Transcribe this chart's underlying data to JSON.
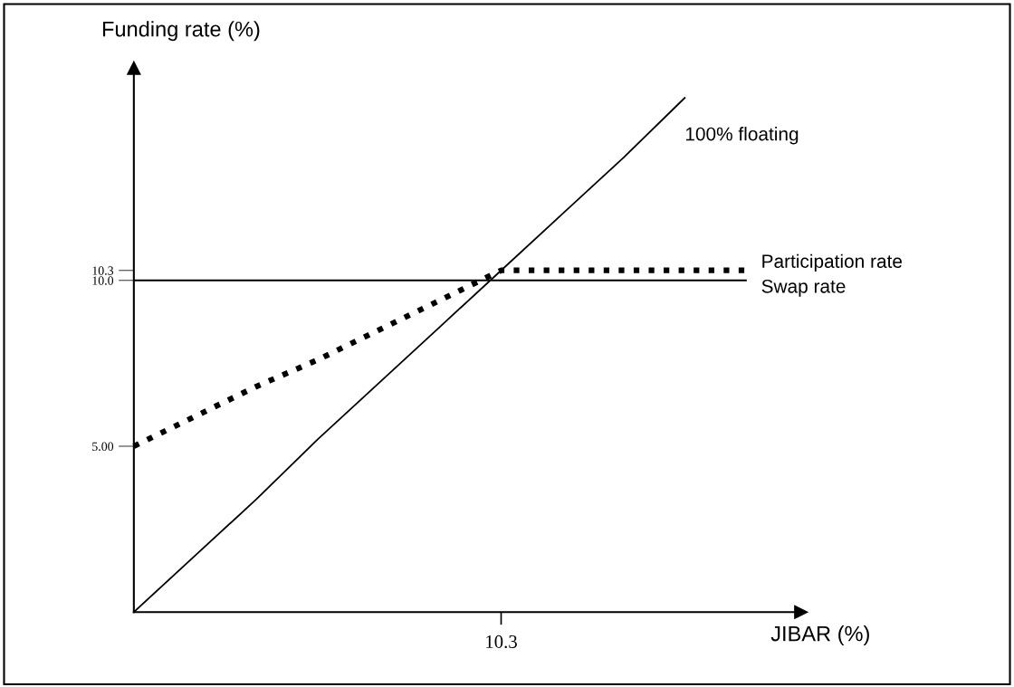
{
  "chart_data": {
    "type": "line",
    "xlabel": "JIBAR (%)",
    "ylabel": "Funding rate (%)",
    "categories": [
      null,
      null,
      null,
      null,
      null,
      null,
      "10.3",
      null,
      null,
      null,
      null
    ],
    "ylim": [
      0,
      16.4
    ],
    "yticks": [
      {
        "value": 5,
        "label": "5.00"
      },
      {
        "value": 10,
        "label": "10.0"
      },
      10.3
    ],
    "grid": false,
    "legend": false,
    "marker": "none",
    "series": [
      {
        "name": "100% floating",
        "color": "#000000",
        "line_style": "solid",
        "values": [
          0,
          1.7,
          3.4,
          5.2,
          6.9,
          8.6,
          10.3,
          12.0,
          13.7,
          15.5,
          null
        ]
      },
      {
        "name": "Participation rate",
        "color": "#000000",
        "line_style": "dotted",
        "values": [
          5,
          5.9,
          6.8,
          7.6,
          8.5,
          9.4,
          10.3,
          10.3,
          10.3,
          10.3,
          10.3
        ]
      },
      {
        "name": "Swap rate",
        "color": "#000000",
        "line_style": "solid",
        "values": [
          10,
          10,
          10,
          10,
          10,
          10,
          10,
          10,
          10,
          10,
          10
        ]
      }
    ]
  }
}
